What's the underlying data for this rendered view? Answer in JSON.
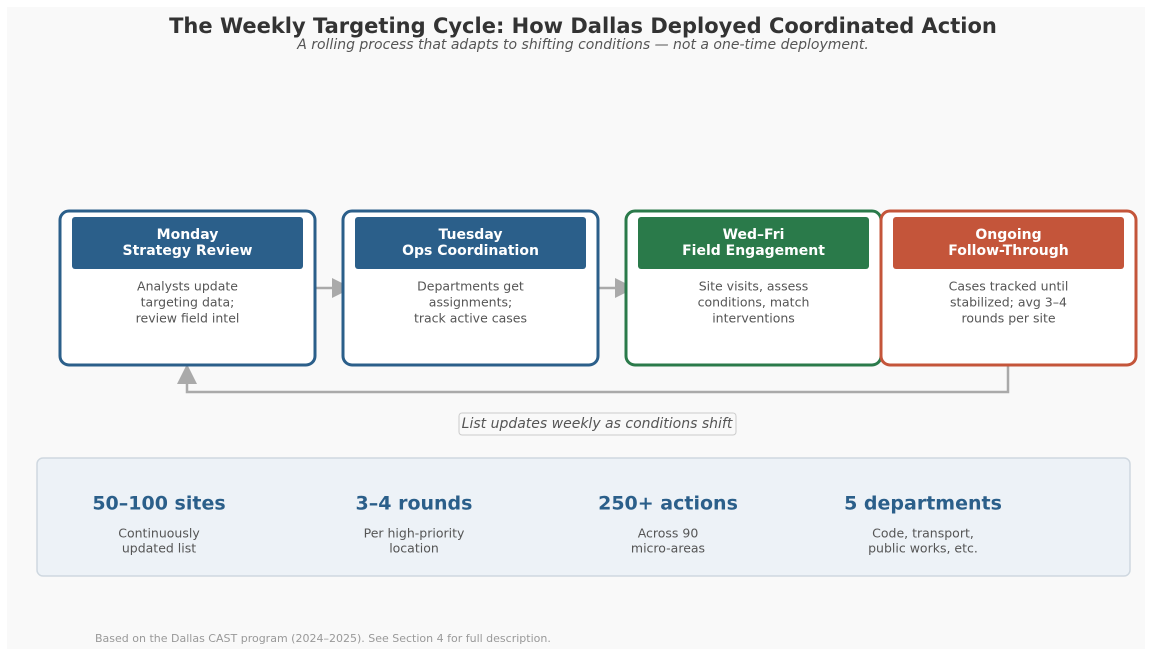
{
  "header": {
    "title": "The Weekly Targeting Cycle: How Dallas Deployed Coordinated Action",
    "subtitle": "A rolling process that adapts to shifting conditions — not a one-time deployment."
  },
  "steps": [
    {
      "heading": [
        "Monday",
        "Strategy Review"
      ],
      "body": [
        "Analysts update",
        "targeting data;",
        "review field intel"
      ]
    },
    {
      "heading": [
        "Tuesday",
        "Ops Coordination"
      ],
      "body": [
        "Departments get",
        "assignments;",
        "track active cases"
      ]
    },
    {
      "heading": [
        "Wed–Fri",
        "Field Engagement"
      ],
      "body": [
        "Site visits, assess",
        "conditions, match",
        "interventions"
      ]
    },
    {
      "heading": [
        "Ongoing",
        "Follow-Through"
      ],
      "body": [
        "Cases tracked until",
        "stabilized; avg 3–4",
        "rounds per site"
      ]
    }
  ],
  "loop_label": "List updates weekly as conditions shift",
  "stats": [
    {
      "value": "50–100 sites",
      "description": [
        "Continuously",
        "updated list"
      ]
    },
    {
      "value": "3–4 rounds",
      "description": [
        "Per high-priority",
        "location"
      ]
    },
    {
      "value": "250+ actions",
      "description": [
        "Across 90",
        "micro-areas"
      ]
    },
    {
      "value": "5 departments",
      "description": [
        "Code, transport,",
        "public works, etc."
      ]
    }
  ],
  "footnote": "Based on the Dallas CAST program (2024–2025). See Section 4 for full description."
}
